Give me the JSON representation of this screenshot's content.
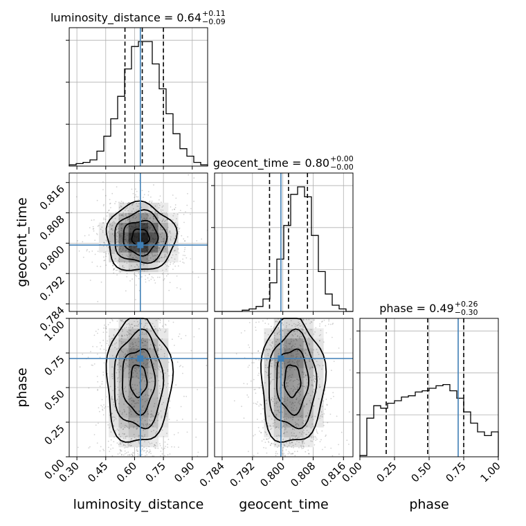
{
  "chart_data": {
    "type": "corner",
    "parameters": [
      "luminosity_distance",
      "geocent_time",
      "phase"
    ],
    "truth": {
      "luminosity_distance": 0.63,
      "geocent_time": 0.7995,
      "phase": 0.71
    },
    "truth_color": "#3f7fb5",
    "axes": {
      "luminosity_distance": {
        "range": [
          0.26,
          0.98
        ],
        "ticks": [
          0.3,
          0.45,
          0.6,
          0.75,
          0.9
        ],
        "tick_labels": [
          "0.30",
          "0.45",
          "0.60",
          "0.75",
          "0.90"
        ]
      },
      "geocent_time": {
        "range": [
          0.782,
          0.8185
        ],
        "ticks": [
          0.784,
          0.792,
          0.8,
          0.808,
          0.816
        ],
        "tick_labels": [
          "0.784",
          "0.792",
          "0.800",
          "0.808",
          "0.816"
        ]
      },
      "phase": {
        "range": [
          0.0,
          1.0
        ],
        "ticks": [
          0.0,
          0.25,
          0.5,
          0.75,
          1.0
        ],
        "tick_labels": [
          "0.00",
          "0.25",
          "0.50",
          "0.75",
          "1.00"
        ]
      }
    },
    "titles": [
      {
        "param": "luminosity_distance",
        "text": "luminosity_distance = 0.64",
        "plus": "+0.11",
        "minus": "−0.09"
      },
      {
        "param": "geocent_time",
        "text": "geocent_time = 0.80",
        "plus": "+0.00",
        "minus": "−0.00"
      },
      {
        "param": "phase",
        "text": "phase = 0.49",
        "plus": "+0.26",
        "minus": "−0.30"
      }
    ],
    "quantiles": {
      "luminosity_distance": [
        0.55,
        0.64,
        0.75
      ],
      "geocent_time": [
        0.7965,
        0.8015,
        0.8065
      ],
      "phase": [
        0.19,
        0.49,
        0.75
      ]
    },
    "histograms": {
      "luminosity_distance": {
        "edges_range": [
          0.26,
          0.98
        ],
        "counts": [
          0.01,
          0.02,
          0.03,
          0.05,
          0.12,
          0.24,
          0.38,
          0.56,
          0.78,
          0.96,
          1.0,
          1.0,
          0.82,
          0.62,
          0.42,
          0.26,
          0.14,
          0.08,
          0.03,
          0.01
        ]
      },
      "geocent_time": {
        "edges_range": [
          0.782,
          0.8185
        ],
        "counts": [
          0.0,
          0.0,
          0.0,
          0.0,
          0.01,
          0.02,
          0.04,
          0.1,
          0.23,
          0.42,
          0.69,
          0.94,
          1.0,
          0.92,
          0.61,
          0.32,
          0.14,
          0.05,
          0.02,
          0.0
        ]
      },
      "phase": {
        "edges_range": [
          0.0,
          1.0
        ],
        "counts": [
          0.01,
          0.31,
          0.41,
          0.39,
          0.43,
          0.45,
          0.48,
          0.49,
          0.52,
          0.53,
          0.55,
          0.57,
          0.58,
          0.53,
          0.47,
          0.36,
          0.27,
          0.2,
          0.17,
          0.2
        ]
      }
    },
    "joint_2d": [
      {
        "x": "luminosity_distance",
        "y": "geocent_time",
        "mean": [
          0.63,
          0.8015
        ],
        "sd": [
          0.09,
          0.0045
        ],
        "corr": 0.0
      },
      {
        "x": "luminosity_distance",
        "y": "phase",
        "mean": [
          0.62,
          0.55
        ],
        "sd": [
          0.085,
          0.23
        ],
        "corr": 0.0
      },
      {
        "x": "geocent_time",
        "y": "phase",
        "mean": [
          0.8025,
          0.55
        ],
        "sd": [
          0.0042,
          0.23
        ],
        "corr": 0.0
      }
    ],
    "contour_levels": [
      0.39,
      0.86,
      0.99
    ],
    "grid": true,
    "xlabel_bottom": [
      "luminosity_distance",
      "geocent_time",
      "phase"
    ],
    "ylabel_left": [
      "",
      "geocent_time",
      "phase"
    ]
  }
}
